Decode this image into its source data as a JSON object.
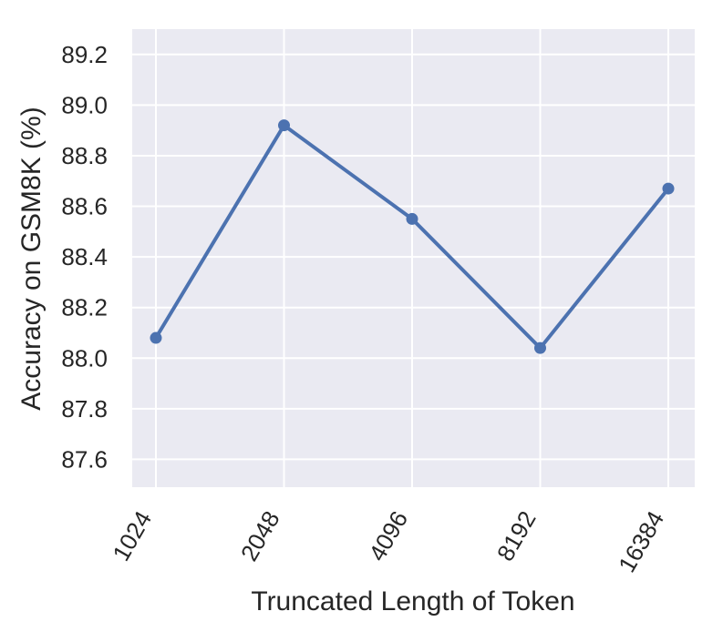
{
  "chart_data": {
    "type": "line",
    "title": "",
    "xlabel": "Truncated Length of Token",
    "ylabel": "Accuracy on GSM8K (%)",
    "categories": [
      "1024",
      "2048",
      "4096",
      "8192",
      "16384"
    ],
    "series": [
      {
        "name": "Accuracy on GSM8K",
        "values": [
          88.08,
          88.92,
          88.55,
          88.04,
          88.67
        ]
      }
    ],
    "ytick_labels": [
      "87.6",
      "87.8",
      "88.0",
      "88.2",
      "88.4",
      "88.6",
      "88.8",
      "89.0",
      "89.2"
    ],
    "ylim": [
      87.49,
      89.3
    ],
    "grid": true,
    "legend": false,
    "xtick_rotation_deg": 60,
    "style": "seaborn-darkgrid",
    "colors": {
      "line": "#4c72b0",
      "marker": "#4c72b0",
      "plot_background": "#eaeaf2",
      "gridline": "#ffffff",
      "text": "#262626",
      "figure_background": "#ffffff"
    }
  }
}
